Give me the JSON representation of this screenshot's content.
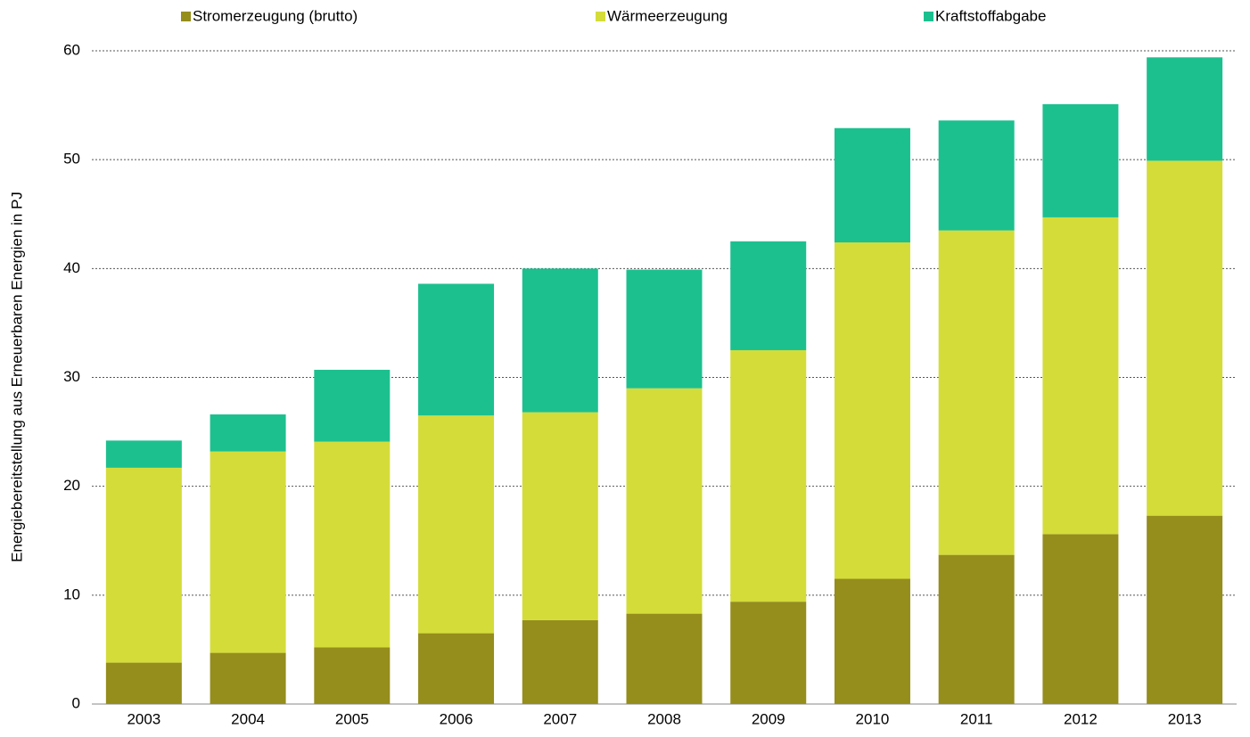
{
  "chart_data": {
    "type": "stacked_bar",
    "y_label": "Energiebereitstellung aus Erneuerbaren Energien in PJ",
    "categories": [
      "2003",
      "2004",
      "2005",
      "2006",
      "2007",
      "2008",
      "2009",
      "2010",
      "2011",
      "2012",
      "2013"
    ],
    "series": [
      {
        "name": "Stromerzeugung (brutto)",
        "color": "#958d1c",
        "values": [
          3.8,
          4.7,
          5.2,
          6.5,
          7.7,
          8.3,
          9.4,
          11.5,
          13.7,
          15.6,
          17.3
        ]
      },
      {
        "name": "Wärmeerzeugung",
        "color": "#d4dc3a",
        "values": [
          17.9,
          18.5,
          18.9,
          20.0,
          19.1,
          20.7,
          23.1,
          30.9,
          29.8,
          29.1,
          32.6
        ]
      },
      {
        "name": "Kraftstoffabgabe",
        "color": "#1cc08f",
        "values": [
          2.5,
          3.4,
          6.6,
          12.1,
          13.2,
          10.9,
          10.0,
          10.5,
          10.1,
          10.4,
          9.5
        ]
      }
    ],
    "ylim": [
      0,
      60
    ],
    "yticks": [
      0,
      10,
      20,
      30,
      40,
      50,
      60
    ],
    "grid": true
  }
}
